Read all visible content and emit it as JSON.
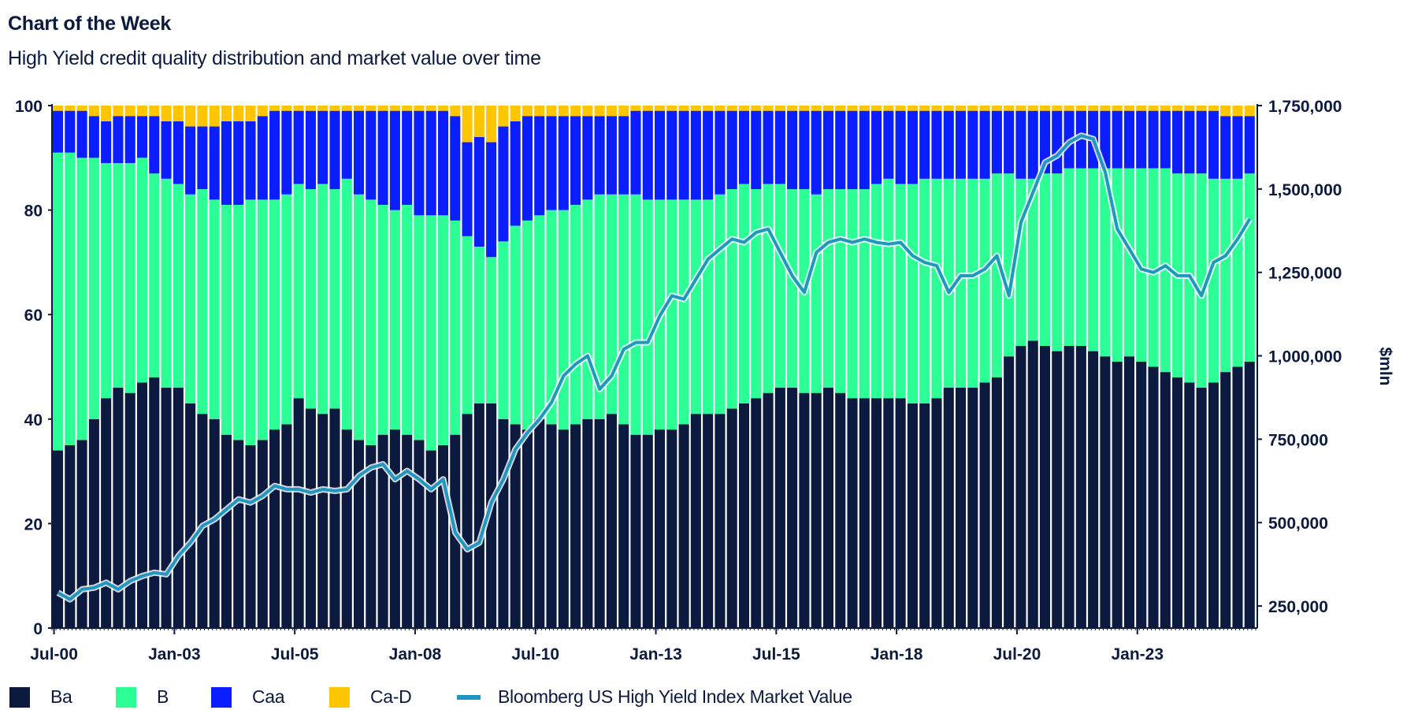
{
  "header": {
    "title": "Chart of the Week",
    "subtitle": "High Yield credit quality distribution and market value over time"
  },
  "colors": {
    "Ba": "#0c1a40",
    "B": "#2cff96",
    "Caa": "#0a1eff",
    "Ca-D": "#ffc600",
    "line": "#1f97bf",
    "text": "#0c1a40"
  },
  "legend": [
    {
      "label": "Ba",
      "type": "box",
      "color": "#0c1a40"
    },
    {
      "label": "B",
      "type": "box",
      "color": "#2cff96"
    },
    {
      "label": "Caa",
      "type": "box",
      "color": "#0a1eff"
    },
    {
      "label": "Ca-D",
      "type": "box",
      "color": "#ffc600"
    },
    {
      "label": "Bloomberg US High Yield Index Market Value",
      "type": "line",
      "color": "#1f97bf"
    }
  ],
  "chart_data": {
    "type": "bar",
    "stacked": true,
    "secondary_type": "line",
    "title": "High Yield credit quality distribution and market value over time",
    "xlabel": "",
    "ylabel": "",
    "y2label": "$mln",
    "ylim": [
      0,
      100
    ],
    "y2lim": [
      184000,
      1750000
    ],
    "yticks": [
      "0",
      "20",
      "40",
      "60",
      "80",
      "100"
    ],
    "y2ticks": [
      "250,000",
      "500,000",
      "750,000",
      "1,000,000",
      "1,250,000",
      "1,500,000",
      "1,750,000"
    ],
    "xticks": [
      "Jul-00",
      "Jan-03",
      "Jul-05",
      "Jan-08",
      "Jul-10",
      "Jan-13",
      "Jul-15",
      "Jan-18",
      "Jul-20",
      "Jan-23"
    ],
    "grid": false,
    "legend_position": "bottom",
    "categories": [
      "Jul-00",
      "Oct-00",
      "Jan-01",
      "Apr-01",
      "Jul-01",
      "Oct-01",
      "Jan-02",
      "Apr-02",
      "Jul-02",
      "Oct-02",
      "Jan-03",
      "Apr-03",
      "Jul-03",
      "Oct-03",
      "Jan-04",
      "Apr-04",
      "Jul-04",
      "Oct-04",
      "Jan-05",
      "Apr-05",
      "Jul-05",
      "Oct-05",
      "Jan-06",
      "Apr-06",
      "Jul-06",
      "Oct-06",
      "Jan-07",
      "Apr-07",
      "Jul-07",
      "Oct-07",
      "Jan-08",
      "Apr-08",
      "Jul-08",
      "Oct-08",
      "Jan-09",
      "Apr-09",
      "Jul-09",
      "Oct-09",
      "Jan-10",
      "Apr-10",
      "Jul-10",
      "Oct-10",
      "Jan-11",
      "Apr-11",
      "Jul-11",
      "Oct-11",
      "Jan-12",
      "Apr-12",
      "Jul-12",
      "Oct-12",
      "Jan-13",
      "Apr-13",
      "Jul-13",
      "Oct-13",
      "Jan-14",
      "Apr-14",
      "Jul-14",
      "Oct-14",
      "Jan-15",
      "Apr-15",
      "Jul-15",
      "Oct-15",
      "Jan-16",
      "Apr-16",
      "Jul-16",
      "Oct-16",
      "Jan-17",
      "Apr-17",
      "Jul-17",
      "Oct-17",
      "Jan-18",
      "Apr-18",
      "Jul-18",
      "Oct-18",
      "Jan-19",
      "Apr-19",
      "Jul-19",
      "Oct-19",
      "Jan-20",
      "Apr-20",
      "Jul-20",
      "Oct-20",
      "Jan-21",
      "Apr-21",
      "Jul-21",
      "Oct-21",
      "Jan-22",
      "Apr-22",
      "Jul-22",
      "Oct-22",
      "Jan-23",
      "Apr-23",
      "Jul-23",
      "Oct-23",
      "Jan-24",
      "Apr-24",
      "Jul-24",
      "Oct-24",
      "Jan-25",
      "Apr-25"
    ],
    "series": [
      {
        "name": "Ba",
        "axis": "left",
        "values": [
          34,
          35,
          36,
          40,
          44,
          46,
          45,
          47,
          48,
          46,
          46,
          43,
          41,
          40,
          37,
          36,
          35,
          36,
          38,
          39,
          44,
          42,
          41,
          42,
          38,
          36,
          35,
          37,
          38,
          37,
          36,
          34,
          35,
          37,
          41,
          43,
          43,
          40,
          39,
          38,
          40,
          39,
          38,
          39,
          40,
          40,
          41,
          39,
          37,
          37,
          38,
          38,
          39,
          41,
          41,
          41,
          42,
          43,
          44,
          45,
          46,
          46,
          45,
          45,
          46,
          45,
          44,
          44,
          44,
          44,
          44,
          43,
          43,
          44,
          46,
          46,
          46,
          47,
          48,
          52,
          54,
          55,
          54,
          53,
          54,
          54,
          53,
          52,
          51,
          52,
          51,
          50,
          49,
          48,
          47,
          46,
          47,
          49,
          50,
          51
        ]
      },
      {
        "name": "B",
        "axis": "left",
        "values": [
          57,
          56,
          54,
          50,
          45,
          43,
          44,
          43,
          39,
          40,
          39,
          40,
          43,
          42,
          44,
          45,
          47,
          46,
          44,
          44,
          41,
          42,
          44,
          42,
          48,
          47,
          47,
          44,
          42,
          44,
          43,
          45,
          44,
          41,
          34,
          30,
          28,
          34,
          38,
          40,
          39,
          41,
          42,
          42,
          42,
          43,
          42,
          44,
          46,
          45,
          44,
          44,
          43,
          41,
          41,
          42,
          42,
          42,
          40,
          40,
          39,
          38,
          39,
          38,
          38,
          39,
          40,
          40,
          41,
          42,
          41,
          42,
          43,
          42,
          40,
          40,
          40,
          39,
          39,
          35,
          32,
          31,
          33,
          34,
          34,
          34,
          35,
          36,
          37,
          36,
          37,
          38,
          39,
          39,
          40,
          41,
          39,
          37,
          36,
          36
        ]
      },
      {
        "name": "Caa",
        "axis": "left",
        "values": [
          8,
          8,
          9,
          8,
          8,
          9,
          9,
          8,
          11,
          11,
          12,
          13,
          12,
          14,
          16,
          16,
          15,
          16,
          17,
          16,
          14,
          15,
          14,
          15,
          13,
          16,
          17,
          18,
          19,
          18,
          20,
          20,
          20,
          20,
          18,
          21,
          22,
          22,
          20,
          20,
          19,
          18,
          18,
          17,
          16,
          15,
          15,
          15,
          16,
          17,
          17,
          17,
          17,
          17,
          17,
          16,
          15,
          14,
          15,
          14,
          14,
          15,
          15,
          16,
          15,
          15,
          15,
          15,
          14,
          13,
          14,
          14,
          13,
          13,
          13,
          13,
          13,
          13,
          12,
          12,
          13,
          13,
          12,
          12,
          11,
          11,
          11,
          11,
          11,
          11,
          11,
          11,
          11,
          12,
          12,
          12,
          13,
          12,
          12,
          11
        ]
      },
      {
        "name": "Ca-D",
        "axis": "left",
        "values": [
          1,
          1,
          1,
          2,
          3,
          2,
          2,
          2,
          2,
          3,
          3,
          4,
          4,
          4,
          3,
          3,
          3,
          2,
          1,
          1,
          1,
          1,
          1,
          1,
          1,
          1,
          1,
          1,
          1,
          1,
          1,
          1,
          1,
          2,
          7,
          6,
          7,
          4,
          3,
          2,
          2,
          2,
          2,
          2,
          2,
          2,
          2,
          2,
          1,
          1,
          1,
          1,
          1,
          1,
          1,
          1,
          1,
          1,
          1,
          1,
          1,
          1,
          1,
          1,
          1,
          1,
          1,
          1,
          1,
          1,
          1,
          1,
          1,
          1,
          1,
          1,
          1,
          1,
          1,
          1,
          1,
          1,
          1,
          1,
          1,
          1,
          1,
          1,
          1,
          1,
          1,
          1,
          1,
          1,
          1,
          1,
          1,
          2,
          2,
          2
        ]
      },
      {
        "name": "Bloomberg US High Yield Index Market Value",
        "axis": "right",
        "type": "line",
        "values": [
          290000,
          270000,
          300000,
          305000,
          320000,
          300000,
          325000,
          340000,
          350000,
          345000,
          400000,
          440000,
          490000,
          510000,
          540000,
          570000,
          560000,
          580000,
          610000,
          600000,
          600000,
          590000,
          600000,
          595000,
          600000,
          640000,
          665000,
          675000,
          630000,
          655000,
          630000,
          600000,
          630000,
          470000,
          420000,
          440000,
          560000,
          630000,
          720000,
          770000,
          810000,
          860000,
          940000,
          975000,
          1000000,
          900000,
          940000,
          1020000,
          1040000,
          1040000,
          1120000,
          1180000,
          1170000,
          1230000,
          1290000,
          1320000,
          1350000,
          1340000,
          1370000,
          1380000,
          1310000,
          1240000,
          1190000,
          1310000,
          1340000,
          1350000,
          1340000,
          1350000,
          1340000,
          1335000,
          1340000,
          1300000,
          1280000,
          1270000,
          1190000,
          1240000,
          1240000,
          1260000,
          1300000,
          1180000,
          1400000,
          1490000,
          1580000,
          1600000,
          1640000,
          1660000,
          1650000,
          1550000,
          1380000,
          1320000,
          1260000,
          1250000,
          1270000,
          1240000,
          1240000,
          1180000,
          1280000,
          1300000,
          1350000,
          1410000
        ]
      }
    ]
  }
}
